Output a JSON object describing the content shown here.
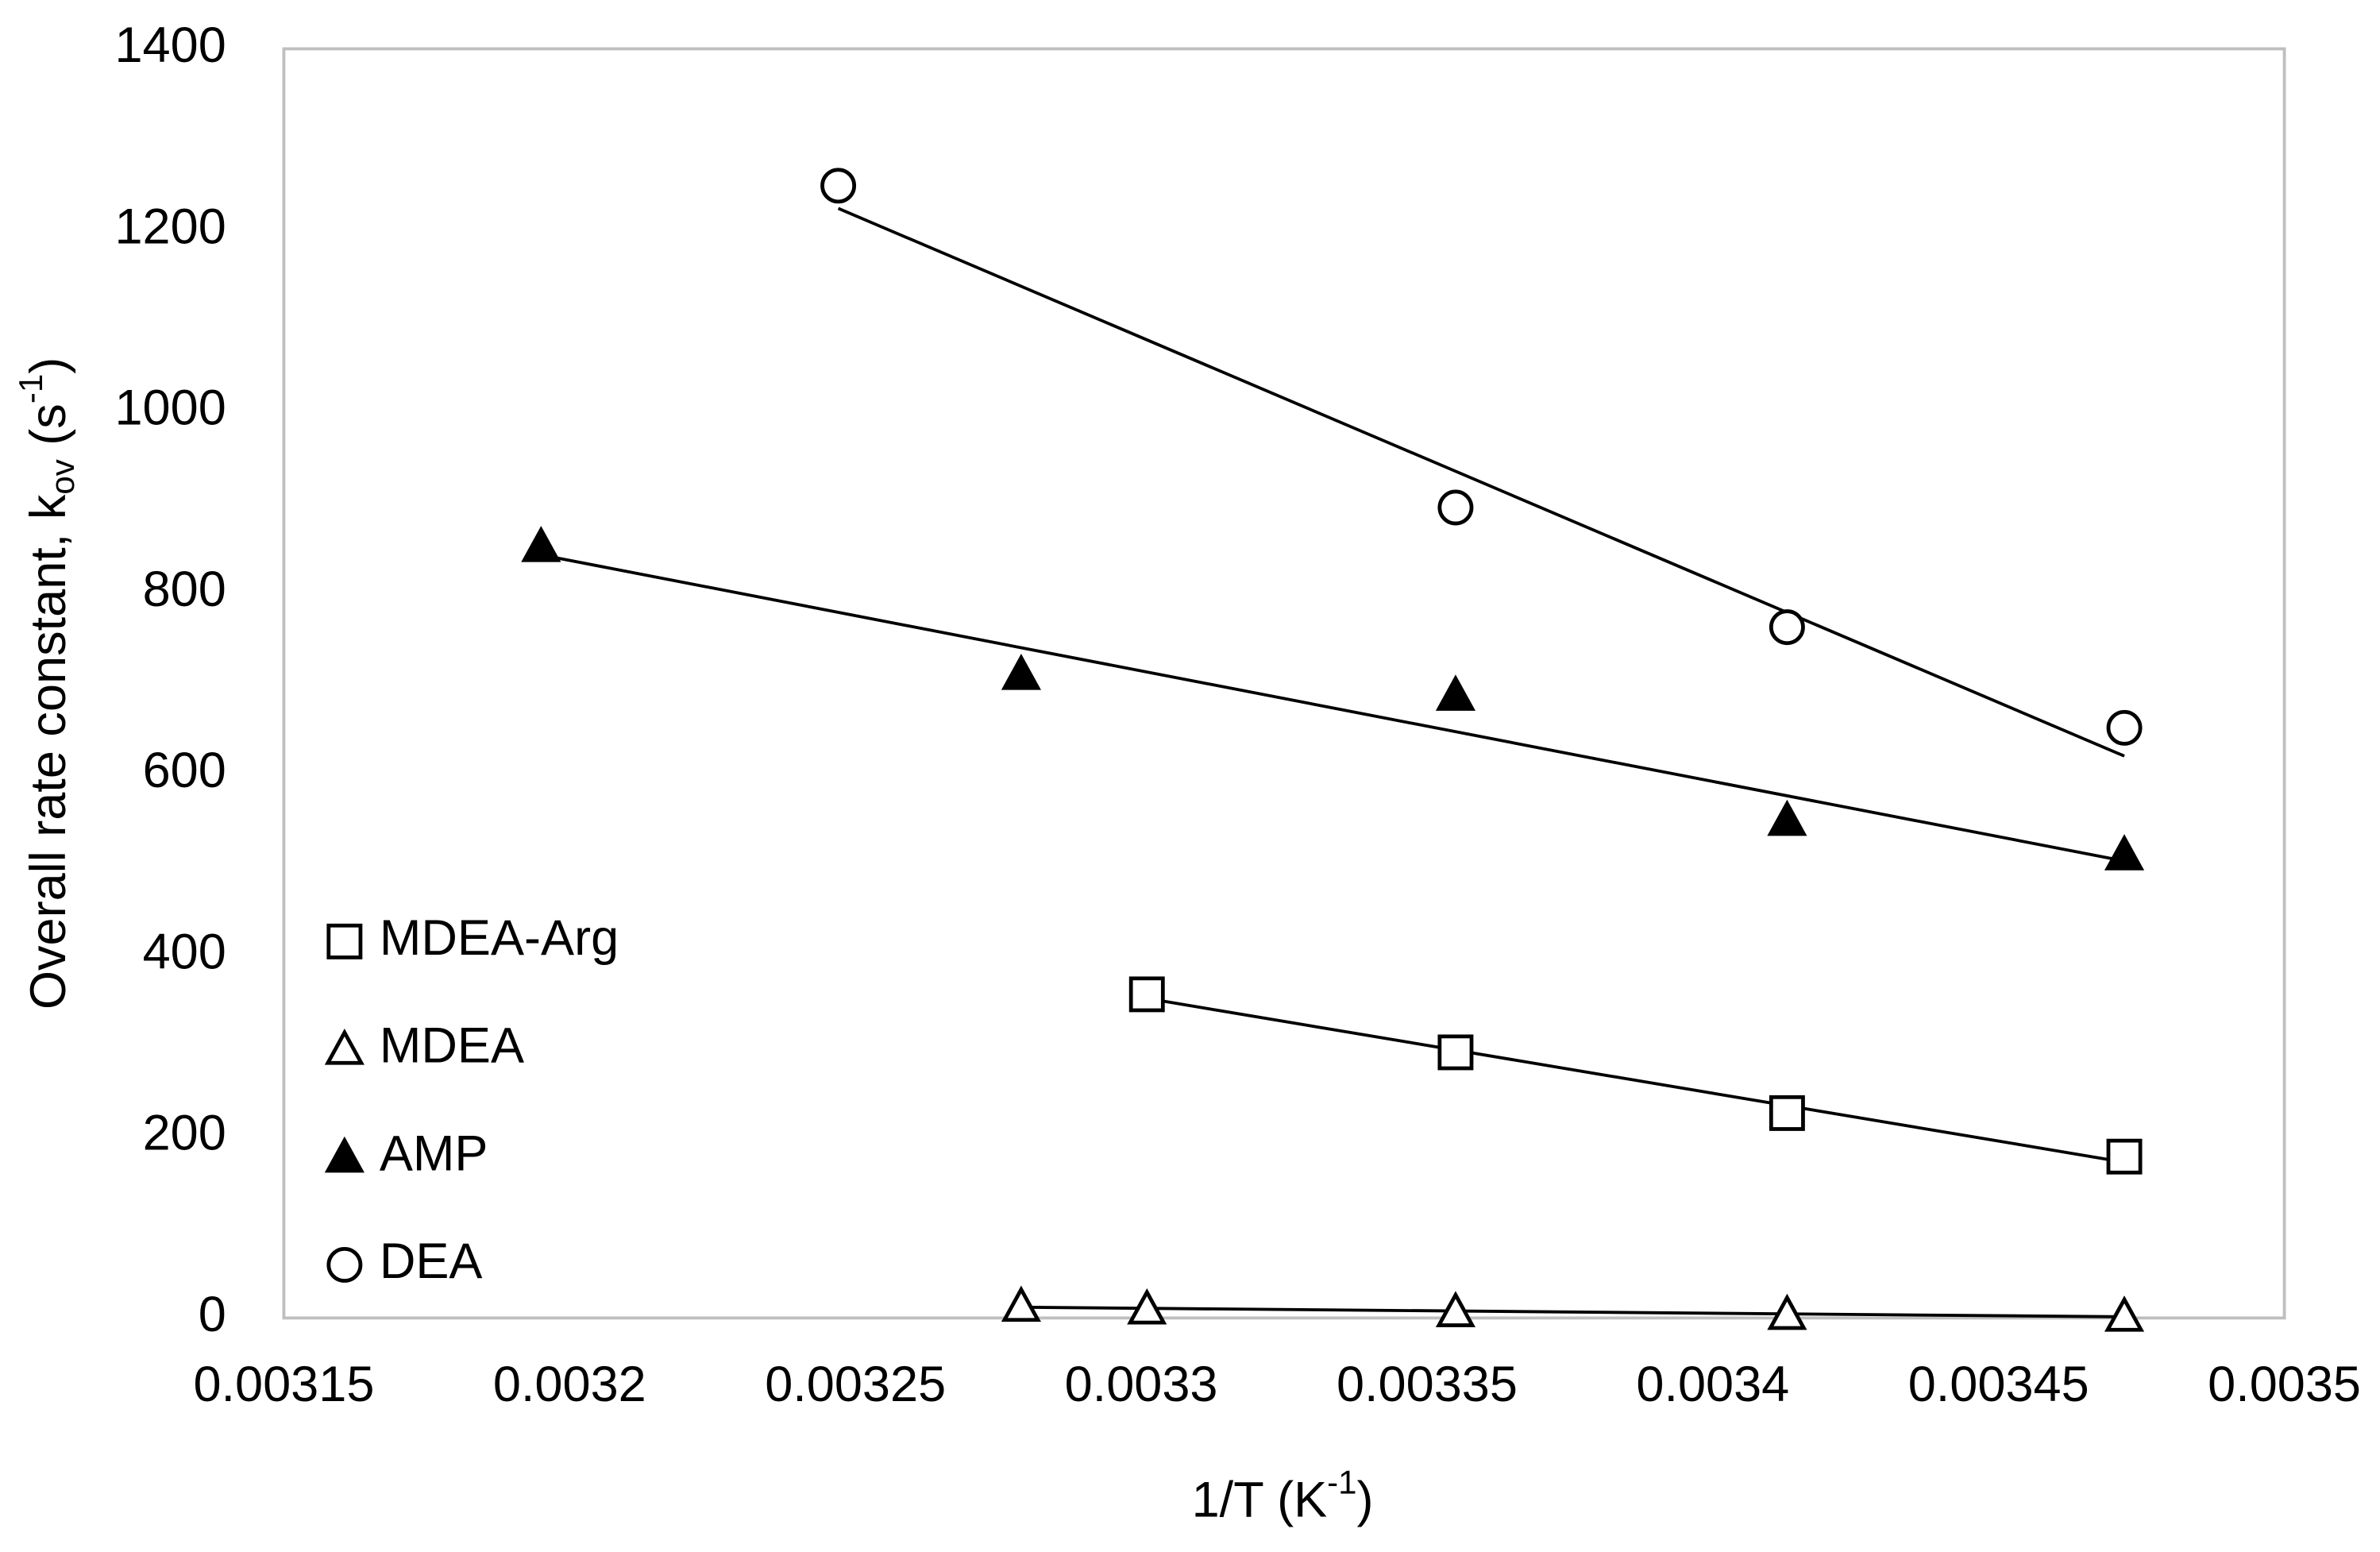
{
  "chart_data": {
    "type": "scatter",
    "x_label_parts": [
      "1/T (K",
      "-1",
      ")"
    ],
    "y_label_parts": [
      "Overall rate constant, k",
      "ov",
      " (s",
      "-1",
      ")"
    ],
    "xlim": [
      0.00315,
      0.0035
    ],
    "xticks": [
      0.00315,
      0.0032,
      0.00325,
      0.0033,
      0.00335,
      0.0034,
      0.00345,
      0.0035
    ],
    "ylim": [
      0,
      1400
    ],
    "yticks": [
      0,
      200,
      400,
      600,
      800,
      1000,
      1200,
      1400
    ],
    "grid": false,
    "trendline": "linear",
    "legend": "lower left",
    "series": [
      {
        "name": "MDEA-Arg",
        "color": "#000000",
        "marker": "square",
        "filled": false,
        "x": [
          0.003301,
          0.003355,
          0.003413,
          0.003472
        ],
        "values": [
          357,
          293,
          226,
          178
        ]
      },
      {
        "name": "MDEA",
        "color": "#000000",
        "marker": "triangle",
        "filled": false,
        "x": [
          0.003279,
          0.003301,
          0.003355,
          0.003413,
          0.003472
        ],
        "values": [
          13,
          10,
          7,
          4,
          2
        ]
      },
      {
        "name": "AMP",
        "color": "#000000",
        "marker": "triangle",
        "filled": true,
        "x": [
          0.003195,
          0.003279,
          0.003355,
          0.003413,
          0.003472
        ],
        "values": [
          851,
          710,
          687,
          549,
          511
        ]
      },
      {
        "name": "DEA",
        "color": "#000000",
        "marker": "circle",
        "filled": false,
        "x": [
          0.003247,
          0.003355,
          0.003413,
          0.003472
        ],
        "values": [
          1249,
          894,
          762,
          651
        ]
      }
    ]
  }
}
